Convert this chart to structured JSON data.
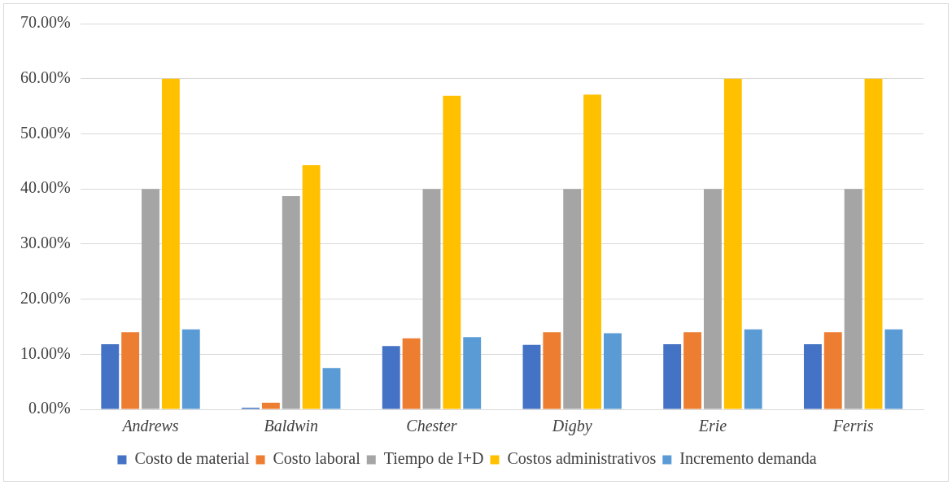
{
  "chart_data": {
    "type": "bar",
    "categories": [
      "Andrews",
      "Baldwin",
      "Chester",
      "Digby",
      "Erie",
      "Ferris"
    ],
    "series": [
      {
        "name": "Costo de material",
        "color": "#4472c4",
        "values": [
          11.8,
          0.3,
          11.5,
          11.7,
          11.8,
          11.8
        ]
      },
      {
        "name": "Costo laboral",
        "color": "#ed7d31",
        "values": [
          14.0,
          1.2,
          12.9,
          14.0,
          14.0,
          14.0
        ]
      },
      {
        "name": "Tiempo de I+D",
        "color": "#a5a5a5",
        "values": [
          40.0,
          38.7,
          40.0,
          40.0,
          40.0,
          40.0
        ]
      },
      {
        "name": "Costos administrativos",
        "color": "#ffc000",
        "values": [
          60.0,
          44.3,
          56.9,
          57.1,
          60.0,
          60.0
        ]
      },
      {
        "name": "Incremento demanda",
        "color": "#5b9bd5",
        "values": [
          14.5,
          7.5,
          13.1,
          13.8,
          14.5,
          14.5
        ]
      }
    ],
    "ylim": [
      0,
      70
    ],
    "yticks": [
      {
        "value": 0,
        "label": "0.00%"
      },
      {
        "value": 10,
        "label": "10.00%"
      },
      {
        "value": 20,
        "label": "20.00%"
      },
      {
        "value": 30,
        "label": "30.00%"
      },
      {
        "value": 40,
        "label": "40.00%"
      },
      {
        "value": 50,
        "label": "50.00%"
      },
      {
        "value": 60,
        "label": "60.00%"
      },
      {
        "value": 70,
        "label": "70.00%"
      }
    ],
    "grid": "y",
    "legend": "bottom"
  }
}
